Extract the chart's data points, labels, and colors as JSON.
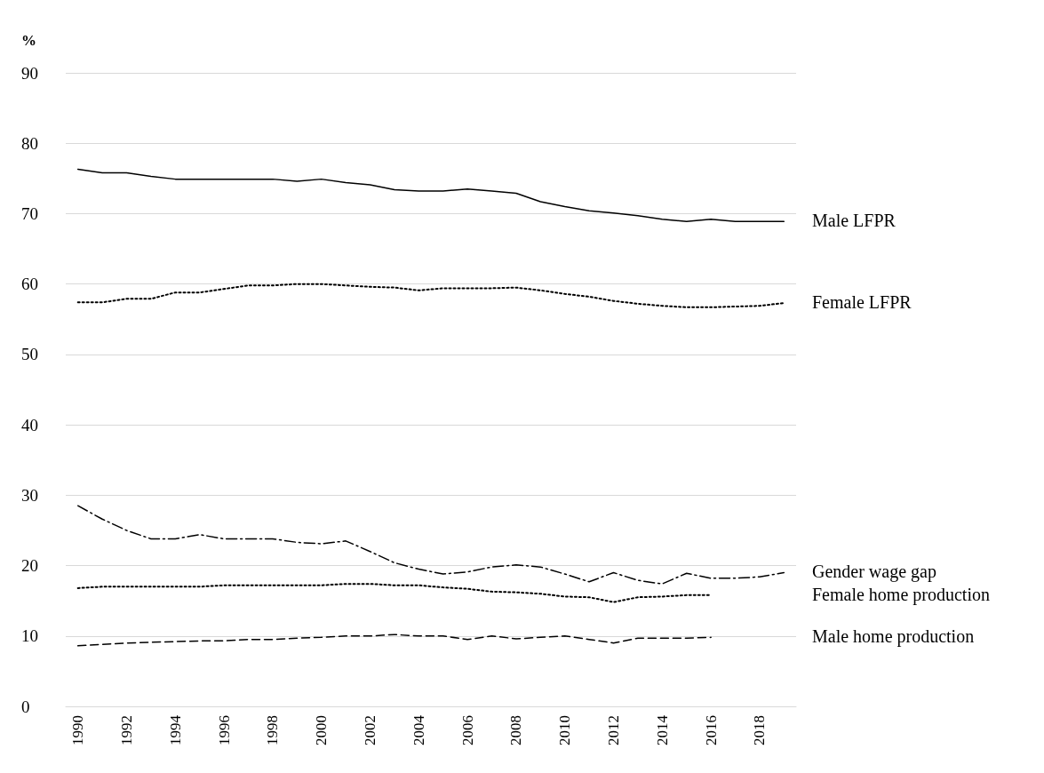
{
  "chart_data": {
    "type": "line",
    "ylabel": "%",
    "categories": [
      "1990",
      null,
      "1992",
      null,
      "1994",
      null,
      "1996",
      null,
      "1998",
      null,
      "2000",
      null,
      "2002",
      null,
      "2004",
      null,
      "2006",
      null,
      "2008",
      null,
      "2010",
      null,
      "2012",
      null,
      "2014",
      null,
      "2016",
      null,
      "2018",
      null
    ],
    "series": [
      {
        "name": "Male LFPR",
        "color": "#000000",
        "line_style": "solid",
        "values": [
          76.3,
          75.8,
          75.8,
          75.3,
          74.9,
          74.9,
          74.9,
          74.9,
          74.9,
          74.6,
          74.9,
          74.4,
          74.1,
          73.4,
          73.2,
          73.2,
          73.5,
          73.2,
          72.9,
          71.7,
          71.0,
          70.4,
          70.1,
          69.7,
          69.2,
          68.9,
          69.2,
          68.9,
          68.9,
          68.9
        ]
      },
      {
        "name": "Female LFPR",
        "color": "#000000",
        "line_style": "dotted",
        "values": [
          57.4,
          57.4,
          57.9,
          57.9,
          58.8,
          58.8,
          59.3,
          59.8,
          59.8,
          60.0,
          60.0,
          59.8,
          59.6,
          59.5,
          59.1,
          59.4,
          59.4,
          59.4,
          59.5,
          59.1,
          58.6,
          58.2,
          57.6,
          57.2,
          56.9,
          56.7,
          56.7,
          56.8,
          56.9,
          57.3
        ]
      },
      {
        "name": "Gender wage gap",
        "color": "#000000",
        "line_style": "dashdot",
        "values": [
          28.5,
          26.6,
          25.0,
          23.8,
          23.8,
          24.4,
          23.8,
          23.8,
          23.8,
          23.3,
          23.1,
          23.5,
          22.0,
          20.4,
          19.5,
          18.8,
          19.1,
          19.8,
          20.1,
          19.8,
          18.8,
          17.7,
          19.0,
          17.9,
          17.4,
          18.9,
          18.2,
          18.2,
          18.4,
          19.0
        ]
      },
      {
        "name": "Female home production",
        "color": "#000000",
        "line_style": "dotted",
        "values": [
          16.8,
          17.0,
          17.0,
          17.0,
          17.0,
          17.0,
          17.2,
          17.2,
          17.2,
          17.2,
          17.2,
          17.4,
          17.4,
          17.2,
          17.2,
          16.9,
          16.7,
          16.3,
          16.2,
          16.0,
          15.6,
          15.5,
          14.8,
          15.5,
          15.6,
          15.8,
          15.8,
          null,
          null,
          null
        ]
      },
      {
        "name": "Male home production",
        "color": "#000000",
        "line_style": "dashed",
        "values": [
          8.6,
          8.8,
          9.0,
          9.1,
          9.2,
          9.3,
          9.3,
          9.5,
          9.5,
          9.7,
          9.8,
          10.0,
          10.0,
          10.2,
          10.0,
          10.0,
          9.5,
          10.0,
          9.6,
          9.8,
          10.0,
          9.5,
          9.0,
          9.7,
          9.7,
          9.7,
          9.8,
          null,
          null,
          null
        ]
      }
    ],
    "ylim": [
      0,
      90
    ],
    "yticks": [
      0,
      10,
      20,
      30,
      40,
      50,
      60,
      70,
      80,
      90
    ],
    "grid": "y",
    "legend": false,
    "marker": "none"
  }
}
